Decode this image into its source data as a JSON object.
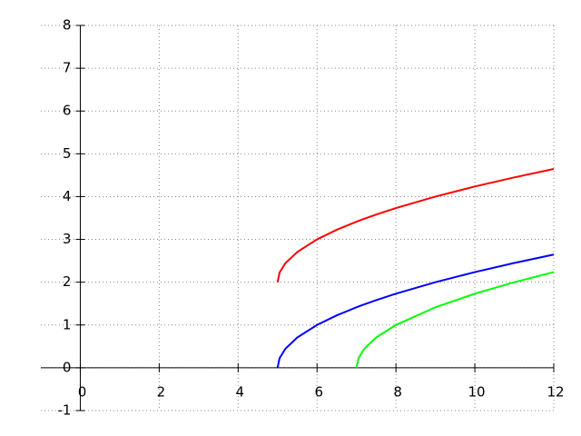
{
  "chart_data": {
    "type": "line",
    "x": [
      5,
      5.05,
      5.2,
      5.5,
      6,
      6.5,
      7,
      7.05,
      7.2,
      7.5,
      8,
      9,
      10,
      11,
      12
    ],
    "series": [
      {
        "name": "red",
        "color": "#ff0000",
        "values": [
          2,
          2.224,
          2.447,
          2.707,
          3,
          3.225,
          3.414,
          3.432,
          3.483,
          3.581,
          3.732,
          4,
          4.236,
          4.449,
          4.646
        ]
      },
      {
        "name": "blue",
        "color": "#0000ff",
        "values": [
          0,
          0.224,
          0.447,
          0.707,
          1,
          1.225,
          1.414,
          1.432,
          1.483,
          1.581,
          1.732,
          2,
          2.236,
          2.449,
          2.646
        ]
      },
      {
        "name": "green",
        "color": "#00ff00",
        "values": [
          null,
          null,
          null,
          null,
          null,
          null,
          0,
          0.224,
          0.447,
          0.707,
          1,
          1.414,
          1.732,
          2,
          2.236
        ]
      }
    ],
    "xlim": [
      -1,
      12
    ],
    "ylim": [
      -1,
      8
    ],
    "xticks": [
      0,
      2,
      4,
      6,
      8,
      10,
      12
    ],
    "yticks": [
      -1,
      0,
      1,
      2,
      3,
      4,
      5,
      6,
      7,
      8
    ],
    "grid": true
  }
}
